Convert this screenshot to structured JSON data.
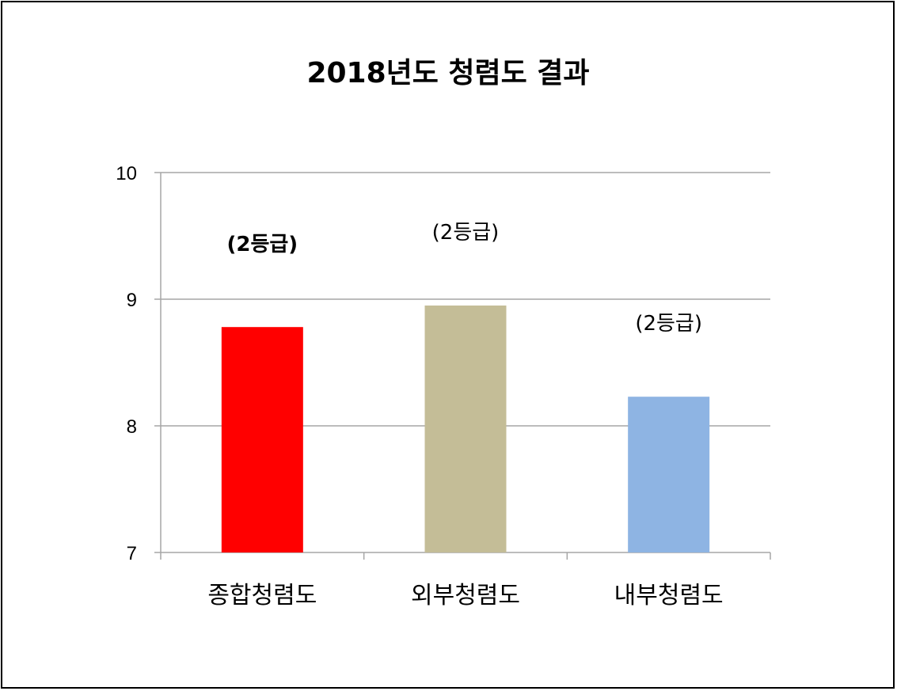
{
  "chart_data": {
    "type": "bar",
    "title": "2018년도 청렴도 결과",
    "xlabel": "",
    "ylabel": "",
    "categories": [
      "종합청렴도",
      "외부청렴도",
      "내부청렴도"
    ],
    "values": [
      8.78,
      8.95,
      8.23
    ],
    "data_labels": [
      "(2등급)",
      "(2등급)",
      "(2등급)"
    ],
    "data_label_bold": [
      true,
      false,
      false
    ],
    "bar_colors": [
      "#ff0000",
      "#c4bd97",
      "#8eb4e3"
    ],
    "ylim": [
      7,
      10
    ],
    "yticks": [
      7,
      8,
      9,
      10
    ],
    "ytick_labels": [
      "7",
      "8",
      "9",
      "10"
    ],
    "grid": true,
    "legend": "none"
  }
}
